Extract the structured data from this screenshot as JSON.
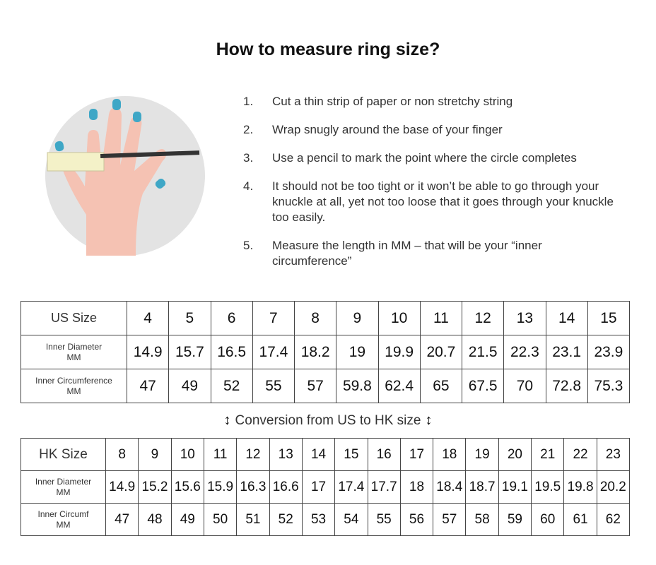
{
  "title": "How to measure ring size?",
  "steps": [
    {
      "n": "1.",
      "text": "Cut a thin strip of paper or non stretchy string"
    },
    {
      "n": "2.",
      "text": "Wrap snugly around the base of your finger"
    },
    {
      "n": "3.",
      "text": "Use a pencil to mark the point where the circle completes"
    },
    {
      "n": "4.",
      "text": "It should not be too tight or it won’t be able to go through your knuckle at all, yet not too loose that it goes through your knuckle too easily."
    },
    {
      "n": "5.",
      "text": "Measure the length in MM – that will be your “inner circumference”"
    }
  ],
  "us_table": {
    "size_label": "US Size",
    "diam_label": "Inner Diameter",
    "circ_label": "Inner Circumference",
    "unit": "MM",
    "sizes": [
      "4",
      "5",
      "6",
      "7",
      "8",
      "9",
      "10",
      "11",
      "12",
      "13",
      "14",
      "15"
    ],
    "diameter": [
      "14.9",
      "15.7",
      "16.5",
      "17.4",
      "18.2",
      "19",
      "19.9",
      "20.7",
      "21.5",
      "22.3",
      "23.1",
      "23.9"
    ],
    "circumference": [
      "47",
      "49",
      "52",
      "55",
      "57",
      "59.8",
      "62.4",
      "65",
      "67.5",
      "70",
      "72.8",
      "75.3"
    ]
  },
  "conversion": {
    "text": "Conversion from US to HK size",
    "icon": "up-down-arrow-icon"
  },
  "hk_table": {
    "size_label": "HK Size",
    "diam_label": "Inner Diameter",
    "circ_label": "Inner Circumf",
    "unit": "MM",
    "sizes": [
      "8",
      "9",
      "10",
      "11",
      "12",
      "13",
      "14",
      "15",
      "16",
      "17",
      "18",
      "19",
      "20",
      "21",
      "22",
      "23"
    ],
    "diameter": [
      "14.9",
      "15.2",
      "15.6",
      "15.9",
      "16.3",
      "16.6",
      "17",
      "17.4",
      "17.7",
      "18",
      "18.4",
      "18.7",
      "19.1",
      "19.5",
      "19.8",
      "20.2"
    ],
    "circumference": [
      "47",
      "48",
      "49",
      "50",
      "51",
      "52",
      "53",
      "54",
      "55",
      "56",
      "57",
      "58",
      "59",
      "60",
      "61",
      "62"
    ]
  },
  "colors": {
    "circle_bg": "#e3e3e3",
    "skin": "#f5c2b3",
    "nail": "#3fa7c6"
  }
}
